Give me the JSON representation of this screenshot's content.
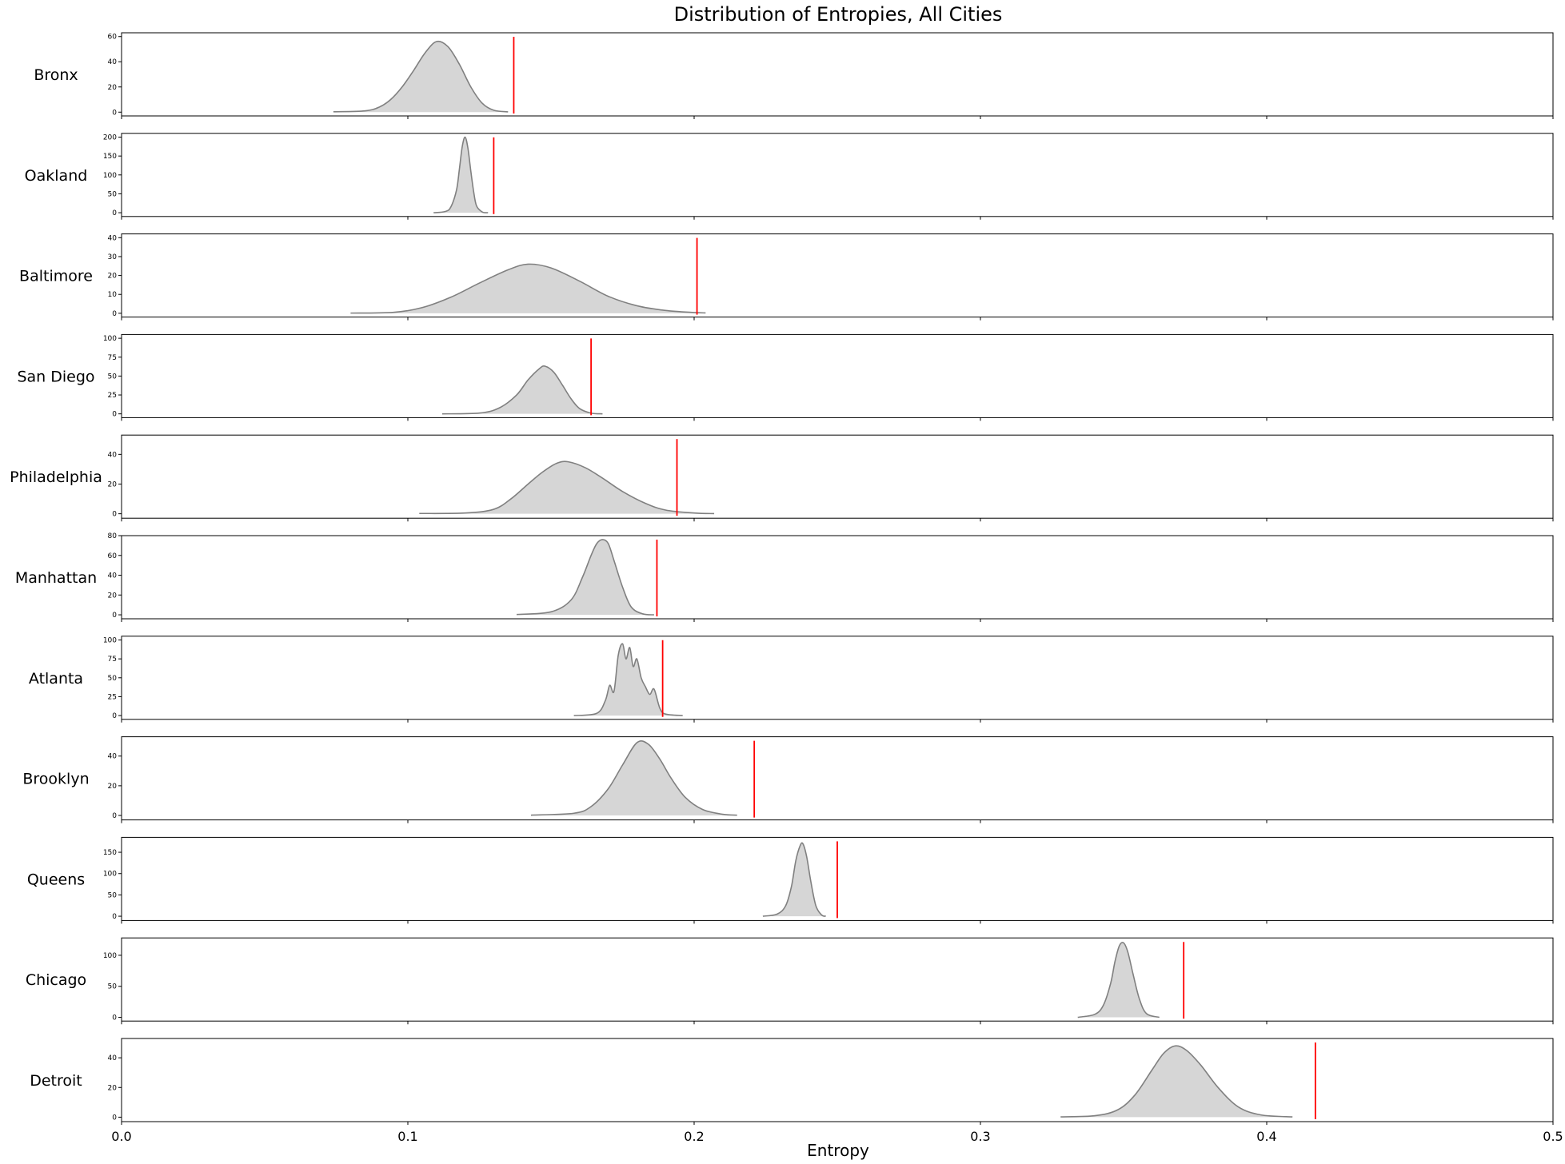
{
  "chart_data": {
    "type": "area",
    "title": "Distribution of Entropies, All Cities",
    "xlabel": "Entropy",
    "xlim": [
      0.0,
      0.5
    ],
    "x_ticks": [
      0.0,
      0.1,
      0.2,
      0.3,
      0.4,
      0.5
    ],
    "x_tick_labels": [
      "0.0",
      "0.1",
      "0.2",
      "0.3",
      "0.4",
      "0.5"
    ],
    "density_color": "#808080",
    "density_fill": "#d6d6d6",
    "marker_color": "#ff0000",
    "grid": false,
    "panels": [
      {
        "city": "Bronx",
        "ylim": [
          -3,
          63
        ],
        "yticks": [
          0,
          20,
          40,
          60
        ],
        "x": [
          0.074,
          0.085,
          0.09,
          0.094,
          0.098,
          0.102,
          0.106,
          0.11,
          0.114,
          0.118,
          0.122,
          0.126,
          0.13,
          0.135
        ],
        "density": [
          0.3,
          1,
          4,
          10,
          20,
          33,
          47,
          56,
          52,
          38,
          20,
          7,
          1.5,
          0.2
        ],
        "observed": 0.137
      },
      {
        "city": "Oakland",
        "ylim": [
          -10,
          210
        ],
        "yticks": [
          0,
          50,
          100,
          150,
          200
        ],
        "x": [
          0.109,
          0.113,
          0.115,
          0.117,
          0.118,
          0.119,
          0.12,
          0.121,
          0.122,
          0.123,
          0.124,
          0.126,
          0.128
        ],
        "density": [
          0,
          3,
          15,
          60,
          115,
          175,
          200,
          170,
          110,
          55,
          18,
          2,
          0
        ],
        "observed": 0.13
      },
      {
        "city": "Baltimore",
        "ylim": [
          -2,
          42
        ],
        "yticks": [
          0,
          10,
          20,
          30,
          40
        ],
        "x": [
          0.08,
          0.095,
          0.105,
          0.115,
          0.125,
          0.135,
          0.142,
          0.15,
          0.16,
          0.17,
          0.18,
          0.19,
          0.2,
          0.204
        ],
        "density": [
          0.1,
          0.5,
          3,
          8.5,
          16,
          23,
          26,
          24,
          17,
          9,
          4,
          1.5,
          0.4,
          0.2
        ],
        "observed": 0.201
      },
      {
        "city": "San Diego",
        "ylim": [
          -5,
          105
        ],
        "yticks": [
          0,
          25,
          50,
          75,
          100
        ],
        "x": [
          0.112,
          0.125,
          0.132,
          0.138,
          0.142,
          0.146,
          0.148,
          0.151,
          0.154,
          0.157,
          0.16,
          0.164,
          0.168
        ],
        "density": [
          0,
          1,
          8,
          25,
          45,
          60,
          63,
          55,
          38,
          20,
          7,
          1,
          0
        ],
        "observed": 0.164
      },
      {
        "city": "Philadelphia",
        "ylim": [
          -3,
          53
        ],
        "yticks": [
          0,
          20,
          40
        ],
        "x": [
          0.104,
          0.12,
          0.13,
          0.136,
          0.142,
          0.147,
          0.152,
          0.156,
          0.162,
          0.168,
          0.175,
          0.183,
          0.19,
          0.2,
          0.207
        ],
        "density": [
          0.2,
          0.5,
          3,
          10,
          20,
          28,
          34,
          35,
          31,
          24,
          15,
          7,
          2.5,
          0.5,
          0.1
        ],
        "observed": 0.194
      },
      {
        "city": "Manhattan",
        "ylim": [
          -4,
          80
        ],
        "yticks": [
          0,
          20,
          40,
          60,
          80
        ],
        "x": [
          0.138,
          0.15,
          0.157,
          0.161,
          0.164,
          0.166,
          0.168,
          0.17,
          0.172,
          0.175,
          0.178,
          0.182,
          0.186
        ],
        "density": [
          0.3,
          3,
          15,
          38,
          60,
          72,
          76,
          72,
          55,
          28,
          8,
          1,
          0
        ],
        "observed": 0.187
      },
      {
        "city": "Atlanta",
        "ylim": [
          -5,
          105
        ],
        "yticks": [
          0,
          25,
          50,
          75,
          100
        ],
        "x": [
          0.158,
          0.166,
          0.169,
          0.1705,
          0.172,
          0.1735,
          0.175,
          0.1762,
          0.1775,
          0.1787,
          0.18,
          0.1815,
          0.183,
          0.1845,
          0.186,
          0.188,
          0.19,
          0.196
        ],
        "density": [
          0,
          3,
          20,
          40,
          32,
          80,
          95,
          75,
          90,
          65,
          75,
          50,
          38,
          28,
          35,
          10,
          2,
          0
        ],
        "observed": 0.189
      },
      {
        "city": "Brooklyn",
        "ylim": [
          -3,
          53
        ],
        "yticks": [
          0,
          20,
          40
        ],
        "x": [
          0.143,
          0.158,
          0.164,
          0.17,
          0.175,
          0.18,
          0.184,
          0.188,
          0.192,
          0.197,
          0.203,
          0.21,
          0.215
        ],
        "density": [
          0.2,
          1.5,
          6,
          18,
          34,
          49,
          48,
          38,
          25,
          12,
          4,
          0.8,
          0.2
        ],
        "observed": 0.221
      },
      {
        "city": "Queens",
        "ylim": [
          -10,
          185
        ],
        "yticks": [
          0,
          50,
          100,
          150
        ],
        "x": [
          0.224,
          0.229,
          0.232,
          0.234,
          0.2355,
          0.237,
          0.238,
          0.2393,
          0.2408,
          0.2425,
          0.2445,
          0.246
        ],
        "density": [
          0,
          5,
          25,
          70,
          130,
          165,
          170,
          140,
          80,
          25,
          3,
          0
        ],
        "observed": 0.25
      },
      {
        "city": "Chicago",
        "ylim": [
          -6,
          128
        ],
        "yticks": [
          0,
          50,
          100
        ],
        "x": [
          0.334,
          0.34,
          0.343,
          0.3455,
          0.347,
          0.3485,
          0.35,
          0.3515,
          0.3533,
          0.3555,
          0.358,
          0.3625
        ],
        "density": [
          0,
          5,
          20,
          55,
          90,
          115,
          120,
          105,
          70,
          30,
          6,
          0
        ],
        "observed": 0.371
      },
      {
        "city": "Detroit",
        "ylim": [
          -3,
          53
        ],
        "yticks": [
          0,
          20,
          40
        ],
        "x": [
          0.328,
          0.34,
          0.348,
          0.354,
          0.36,
          0.364,
          0.368,
          0.372,
          0.377,
          0.383,
          0.39,
          0.398,
          0.409
        ],
        "density": [
          0.2,
          1,
          5,
          15,
          32,
          43,
          48,
          45,
          35,
          20,
          7,
          1.5,
          0.2
        ],
        "observed": 0.417
      }
    ]
  }
}
